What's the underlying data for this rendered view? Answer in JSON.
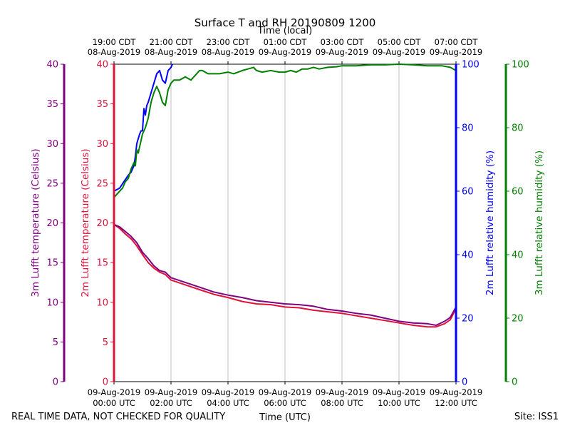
{
  "chart_data": {
    "type": "line",
    "title": "Surface T and RH 20190809 1200",
    "top_axis_title": "Time (local)",
    "xlabel": "Time (UTC)",
    "footer_left": "REAL TIME DATA, NOT CHECKED FOR QUALITY",
    "footer_right": "Site: ISS1",
    "x_range_hours": [
      0,
      12
    ],
    "bottom_ticks": [
      {
        "h": 0,
        "l1": "09-Aug-2019",
        "l2": "00:00 UTC"
      },
      {
        "h": 2,
        "l1": "09-Aug-2019",
        "l2": "02:00 UTC"
      },
      {
        "h": 4,
        "l1": "09-Aug-2019",
        "l2": "04:00 UTC"
      },
      {
        "h": 6,
        "l1": "09-Aug-2019",
        "l2": "06:00 UTC"
      },
      {
        "h": 8,
        "l1": "09-Aug-2019",
        "l2": "08:00 UTC"
      },
      {
        "h": 10,
        "l1": "09-Aug-2019",
        "l2": "10:00 UTC"
      },
      {
        "h": 12,
        "l1": "09-Aug-2019",
        "l2": "12:00 UTC"
      }
    ],
    "top_ticks": [
      {
        "h": 0,
        "l1": "19:00 CDT",
        "l2": "08-Aug-2019"
      },
      {
        "h": 2,
        "l1": "21:00 CDT",
        "l2": "08-Aug-2019"
      },
      {
        "h": 4,
        "l1": "23:00 CDT",
        "l2": "08-Aug-2019"
      },
      {
        "h": 6,
        "l1": "01:00 CDT",
        "l2": "09-Aug-2019"
      },
      {
        "h": 8,
        "l1": "03:00 CDT",
        "l2": "09-Aug-2019"
      },
      {
        "h": 10,
        "l1": "05:00 CDT",
        "l2": "09-Aug-2019"
      },
      {
        "h": 12,
        "l1": "07:00 CDT",
        "l2": "09-Aug-2019"
      }
    ],
    "axes": {
      "t3m": {
        "label": "3m Lufft temperature (Celsius)",
        "color": "#800080",
        "range": [
          0,
          40
        ],
        "ticks": [
          0,
          5,
          10,
          15,
          20,
          25,
          30,
          35,
          40
        ]
      },
      "t2m": {
        "label": "2m Lufft temperature (Celsius)",
        "color": "#dc143c",
        "range": [
          0,
          40
        ],
        "ticks": [
          0,
          5,
          10,
          15,
          20,
          25,
          30,
          35,
          40
        ]
      },
      "rh2m": {
        "label": "2m Lufft relative humidity (%)",
        "color": "#0000ff",
        "range": [
          0,
          100
        ],
        "ticks": [
          0,
          20,
          40,
          60,
          80,
          100
        ]
      },
      "rh3m": {
        "label": "3m Lufft relative humidity (%)",
        "color": "#008000",
        "range": [
          0,
          100
        ],
        "ticks": [
          0,
          20,
          40,
          60,
          80,
          100
        ]
      }
    },
    "series": [
      {
        "name": "2m Lufft relative humidity (%)",
        "axis": "rh2m",
        "color": "#0000ff",
        "x": [
          0,
          0.2,
          0.35,
          0.5,
          0.6,
          0.7,
          0.75,
          0.8,
          0.9,
          0.95,
          1.0,
          1.05,
          1.1,
          1.15,
          1.2,
          1.3,
          1.4,
          1.5,
          1.6,
          1.7,
          1.8,
          1.9,
          2.0,
          2.05
        ],
        "values": [
          60,
          61,
          63,
          65,
          66,
          68,
          71,
          75,
          78,
          79,
          79,
          86,
          84,
          87,
          88,
          91,
          94,
          97,
          98,
          95,
          94,
          98,
          99,
          100
        ]
      },
      {
        "name": "3m Lufft relative humidity (%)",
        "axis": "rh3m",
        "color": "#008000",
        "x": [
          0,
          0.1,
          0.2,
          0.3,
          0.4,
          0.5,
          0.6,
          0.7,
          0.75,
          0.8,
          0.85,
          0.9,
          1.0,
          1.1,
          1.2,
          1.3,
          1.4,
          1.5,
          1.6,
          1.7,
          1.8,
          1.9,
          2.0,
          2.1,
          2.2,
          2.3,
          2.5,
          2.7,
          2.9,
          3.0,
          3.1,
          3.3,
          3.5,
          3.7,
          4.0,
          4.2,
          4.5,
          4.7,
          4.9,
          5.0,
          5.2,
          5.5,
          5.8,
          6.0,
          6.2,
          6.4,
          6.6,
          6.8,
          7.0,
          7.2,
          7.5,
          7.8,
          8.0,
          8.5,
          9.0,
          9.5,
          10.0,
          10.5,
          11.0,
          11.5,
          11.8,
          12.0
        ],
        "values": [
          58,
          59,
          60,
          61,
          63,
          64,
          67,
          69,
          68,
          73,
          72,
          74,
          78,
          80,
          83,
          88,
          91,
          93,
          91,
          88,
          87,
          92,
          94,
          95,
          95,
          95,
          96,
          95,
          97,
          98,
          98,
          97,
          97,
          97,
          97.5,
          97,
          98,
          98.5,
          99,
          98,
          97.5,
          98,
          97.5,
          97.5,
          98,
          97.5,
          98.5,
          98.5,
          99,
          98.5,
          99,
          99.2,
          99.5,
          99.5,
          99.8,
          99.8,
          100,
          99.8,
          99.5,
          99.5,
          99,
          98
        ]
      },
      {
        "name": "2m Lufft temperature (Celsius)",
        "axis": "t2m",
        "color": "#dc143c",
        "x": [
          0,
          0.2,
          0.4,
          0.6,
          0.8,
          1.0,
          1.2,
          1.4,
          1.6,
          1.8,
          2.0,
          2.5,
          3.0,
          3.5,
          4.0,
          4.5,
          5.0,
          5.5,
          6.0,
          6.5,
          7.0,
          7.5,
          8.0,
          8.5,
          9.0,
          9.5,
          10.0,
          10.5,
          11.0,
          11.3,
          11.6,
          11.8,
          12.0
        ],
        "values": [
          19.8,
          19.3,
          18.6,
          18.0,
          17.1,
          16.0,
          15.0,
          14.3,
          13.8,
          13.5,
          12.8,
          12.2,
          11.6,
          11.0,
          10.6,
          10.1,
          9.8,
          9.7,
          9.4,
          9.3,
          9.0,
          8.8,
          8.6,
          8.3,
          8.0,
          7.7,
          7.4,
          7.1,
          6.9,
          6.9,
          7.3,
          7.8,
          9.2
        ]
      },
      {
        "name": "3m Lufft temperature (Celsius)",
        "axis": "t3m",
        "color": "#800080",
        "x": [
          0,
          0.2,
          0.4,
          0.6,
          0.8,
          1.0,
          1.2,
          1.4,
          1.6,
          1.8,
          2.0,
          2.5,
          3.0,
          3.5,
          4.0,
          4.5,
          5.0,
          5.5,
          6.0,
          6.5,
          7.0,
          7.5,
          8.0,
          8.5,
          9.0,
          9.5,
          10.0,
          10.5,
          11.0,
          11.3,
          11.6,
          11.8,
          12.0
        ],
        "values": [
          19.8,
          19.5,
          18.9,
          18.3,
          17.5,
          16.3,
          15.5,
          14.6,
          14.0,
          13.8,
          13.1,
          12.5,
          11.9,
          11.3,
          10.9,
          10.6,
          10.2,
          10.0,
          9.8,
          9.7,
          9.5,
          9.1,
          8.9,
          8.6,
          8.4,
          8.0,
          7.6,
          7.4,
          7.3,
          7.1,
          7.6,
          8.1,
          9.4
        ]
      }
    ]
  }
}
